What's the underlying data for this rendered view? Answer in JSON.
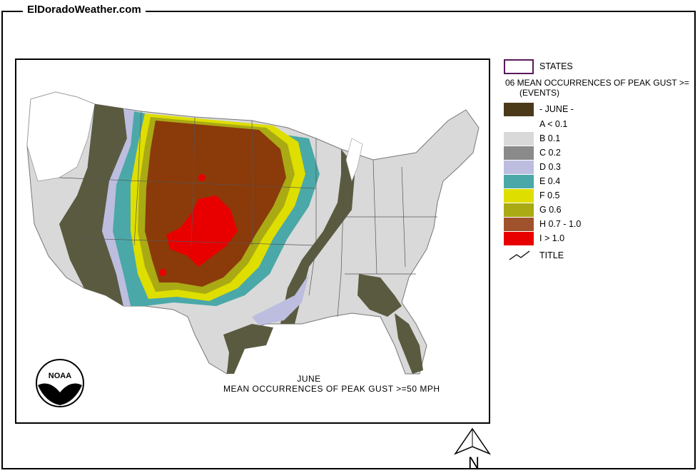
{
  "site_title": "ElDoradoWeather.com",
  "map_caption": {
    "line1": "JUNE",
    "line2": "MEAN OCCURRENCES OF PEAK GUST >=50 MPH"
  },
  "logo_text": "NOAA",
  "north_label": "N",
  "legend": {
    "states_label": "STATES",
    "title_line1": "06 MEAN OCCURRENCES OF PEAK GUST >=",
    "title_line2": "(EVENTS)",
    "month_label": "- JUNE -",
    "classes": [
      {
        "label": "A < 0.1",
        "color": "#ffffff"
      },
      {
        "label": "B 0.1",
        "color": "#d9d9d9"
      },
      {
        "label": "C 0.2",
        "color": "#8a8a8a"
      },
      {
        "label": "D 0.3",
        "color": "#bdbde0"
      },
      {
        "label": "E 0.4",
        "color": "#4aa8a8"
      },
      {
        "label": "F 0.5",
        "color": "#dede00"
      },
      {
        "label": "G 0.6",
        "color": "#aaaa14"
      },
      {
        "label": "H 0.7 - 1.0",
        "color": "#a0522d"
      },
      {
        "label": "I > 1.0",
        "color": "#e80000"
      }
    ],
    "title_symbol_label": "TITLE"
  },
  "colors": {
    "month_swatch": "#4a3a1a",
    "states_outline": "#5a1a5a",
    "dark_olive": "#5a5a40",
    "core_brown": "#8b3a0a"
  }
}
